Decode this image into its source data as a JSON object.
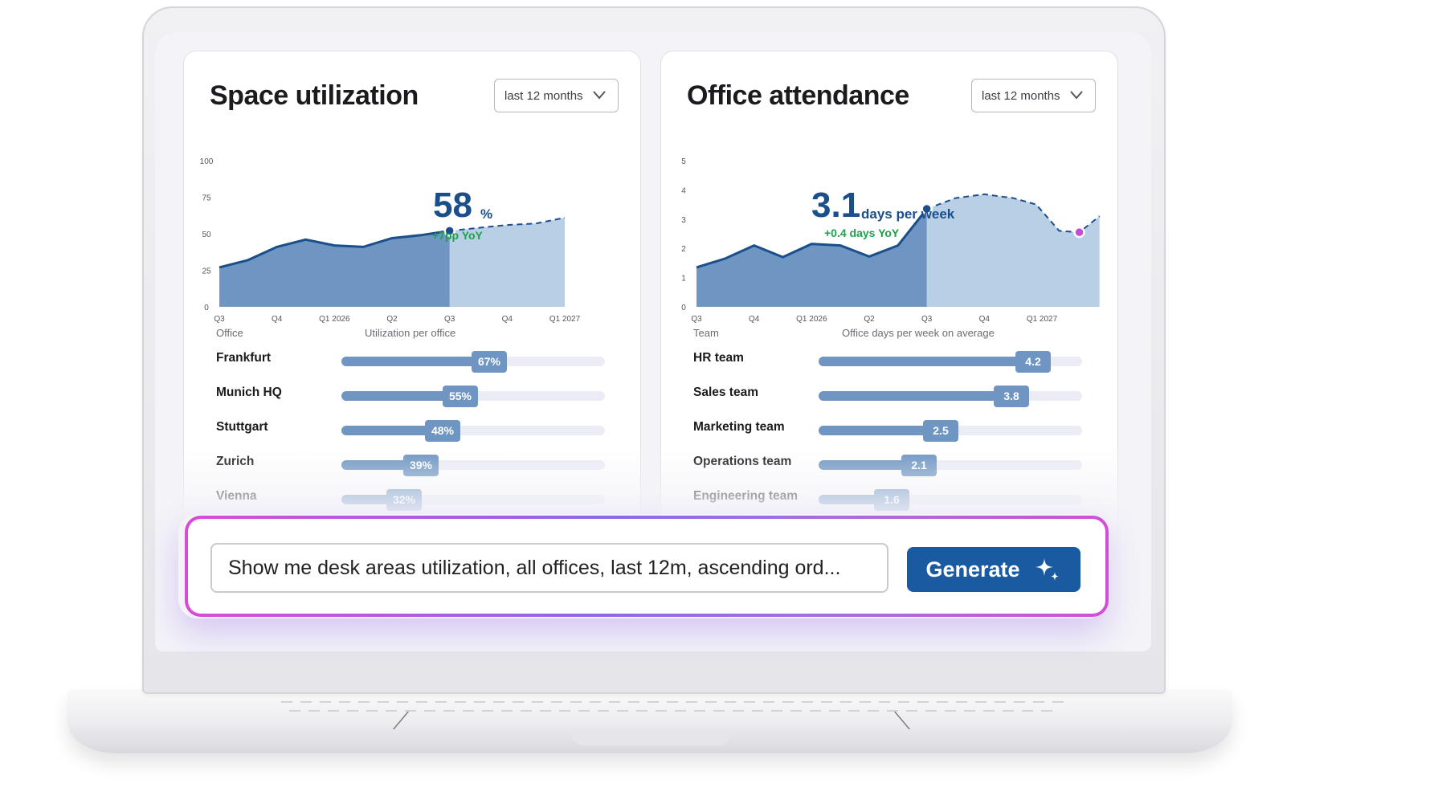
{
  "space_utilization": {
    "title": "Space utilization",
    "period": "last 12 months",
    "kpi_value": "58",
    "kpi_unit": "%",
    "kpi_change": "+7pp YoY",
    "table_header_office": "Office",
    "table_header_metric": "Utilization per office",
    "rows": [
      {
        "label": "Frankfurt",
        "value": 67,
        "display": "67%"
      },
      {
        "label": "Munich HQ",
        "value": 55,
        "display": "55%"
      },
      {
        "label": "Stuttgart",
        "value": 48,
        "display": "48%"
      },
      {
        "label": "Zurich",
        "value": 39,
        "display": "39%"
      },
      {
        "label": "Vienna",
        "value": 32,
        "display": "32%"
      }
    ]
  },
  "office_attendance": {
    "title": "Office attendance",
    "period": "last 12 months",
    "kpi_value": "3.1",
    "kpi_unit": "days per week",
    "kpi_change": "+0.4 days YoY",
    "table_header_team": "Team",
    "table_header_metric": "Office days per week on average",
    "rows": [
      {
        "label": "HR team",
        "value": 4.2,
        "display": "4.2"
      },
      {
        "label": "Sales team",
        "value": 3.8,
        "display": "3.8"
      },
      {
        "label": "Marketing team",
        "value": 2.5,
        "display": "2.5"
      },
      {
        "label": "Operations team",
        "value": 2.1,
        "display": "2.1"
      },
      {
        "label": "Engineering team",
        "value": 1.6,
        "display": "1.6"
      }
    ]
  },
  "prompt": {
    "input_value": "Show me desk areas utilization, all offices, last 12m, ascending ord...",
    "generate_label": "Generate"
  },
  "colors": {
    "actual_fill": "#6f96c3",
    "forecast_fill": "#b9cfe6",
    "line": "#1a4f8c",
    "kpi_blue": "#1a4f8c",
    "kpi_green": "#1aa34a",
    "accent_purple": "#c64cd8",
    "button": "#1a5aa0"
  },
  "chart_data": [
    {
      "type": "area",
      "title": "Space utilization",
      "x": [
        "Q3",
        "Q4",
        "Q1 2026",
        "Q2",
        "Q3",
        "Q4",
        "Q1 2027"
      ],
      "y_ticks": [
        0,
        25,
        50,
        75,
        100
      ],
      "ylim": [
        0,
        100
      ],
      "series": [
        {
          "name": "actual",
          "points": [
            [
              0,
              27
            ],
            [
              0.5,
              32
            ],
            [
              1,
              41
            ],
            [
              1.5,
              46
            ],
            [
              2,
              42
            ],
            [
              2.5,
              41
            ],
            [
              3,
              47
            ],
            [
              3.5,
              49
            ],
            [
              4,
              52
            ]
          ]
        },
        {
          "name": "forecast",
          "points": [
            [
              4,
              52
            ],
            [
              4.5,
              54
            ],
            [
              5,
              56
            ],
            [
              5.5,
              57
            ],
            [
              6,
              61
            ]
          ]
        }
      ],
      "highlight": {
        "x": 4,
        "y": 52
      },
      "grid": false
    },
    {
      "type": "area",
      "title": "Office attendance",
      "x": [
        "Q3",
        "Q4",
        "Q1 2026",
        "Q2",
        "Q3",
        "Q4",
        "Q1 2027"
      ],
      "y_ticks": [
        0,
        1,
        2,
        3,
        4,
        5
      ],
      "ylim": [
        0,
        5
      ],
      "series": [
        {
          "name": "actual",
          "points": [
            [
              0,
              1.35
            ],
            [
              0.5,
              1.65
            ],
            [
              1,
              2.1
            ],
            [
              1.5,
              1.7
            ],
            [
              2,
              2.15
            ],
            [
              2.5,
              2.1
            ],
            [
              3,
              1.72
            ],
            [
              3.5,
              2.1
            ],
            [
              4,
              3.35
            ]
          ]
        },
        {
          "name": "forecast",
          "points": [
            [
              4,
              3.35
            ],
            [
              4.5,
              3.72
            ],
            [
              5,
              3.85
            ],
            [
              5.5,
              3.72
            ],
            [
              5.9,
              3.5
            ],
            [
              6.3,
              2.6
            ],
            [
              6.65,
              2.55
            ],
            [
              7,
              3.1
            ]
          ]
        }
      ],
      "highlight": {
        "x": 4,
        "y": 3.35
      },
      "marker": {
        "x": 6.65,
        "y": 2.55
      },
      "grid": false
    }
  ]
}
